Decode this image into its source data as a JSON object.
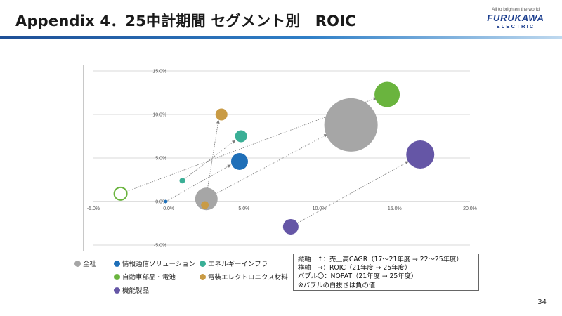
{
  "header": {
    "title": "Appendix 4．25中計期間 セグメント別　ROIC",
    "tagline": "All to brighten the world",
    "logo_main": "FURUKAWA",
    "logo_sub": "ELECTRIC"
  },
  "colors": {
    "accent_rule": "#1e4f96",
    "arrow": "#7a7a7a",
    "grid": "#d9d9d9"
  },
  "chart_data": {
    "type": "scatter",
    "subtype": "bubble",
    "xlim": [
      -5,
      20
    ],
    "ylim": [
      -5,
      15
    ],
    "x_ticks": [
      -5,
      0,
      5,
      10,
      15,
      20
    ],
    "y_ticks": [
      -5,
      0,
      5,
      10,
      15
    ],
    "x_tick_labels": [
      "-5.0%",
      "0.0%",
      "5.0%",
      "10.0%",
      "15.0%",
      "20.0%"
    ],
    "y_tick_labels": [
      "-5.0%",
      "0.0%",
      "5.0%",
      "10.0%",
      "15.0%"
    ],
    "grid": "horizontal",
    "series": [
      {
        "name": "全社",
        "color": "#a6a6a6",
        "points": [
          {
            "x": 2.5,
            "y": 0.3,
            "size": 16,
            "hollow": false
          },
          {
            "x": 12.1,
            "y": 8.8,
            "size": 38,
            "hollow": false
          }
        ]
      },
      {
        "name": "情報通信ソリューション",
        "color": "#1f6fb8",
        "points": [
          {
            "x": -0.2,
            "y": 0.0,
            "size": 2.5,
            "hollow": false
          },
          {
            "x": 4.7,
            "y": 4.6,
            "size": 12,
            "hollow": false
          }
        ]
      },
      {
        "name": "エネルギーインフラ",
        "color": "#3aaf96",
        "points": [
          {
            "x": 0.9,
            "y": 2.4,
            "size": 4,
            "hollow": false
          },
          {
            "x": 4.8,
            "y": 7.5,
            "size": 8.5,
            "hollow": false
          }
        ]
      },
      {
        "name": "自動車部品・電池",
        "color": "#6ab43e",
        "points": [
          {
            "x": -3.2,
            "y": 0.9,
            "size": 9,
            "hollow": true
          },
          {
            "x": 14.5,
            "y": 12.3,
            "size": 18,
            "hollow": false
          }
        ]
      },
      {
        "name": "電装エレクトロニクス材料",
        "color": "#c99b45",
        "points": [
          {
            "x": 2.4,
            "y": -0.4,
            "size": 5.5,
            "hollow": false
          },
          {
            "x": 3.5,
            "y": 10.0,
            "size": 8.5,
            "hollow": false
          }
        ]
      },
      {
        "name": "機能製品",
        "color": "#6556a6",
        "points": [
          {
            "x": 8.1,
            "y": -2.9,
            "size": 11,
            "hollow": false
          },
          {
            "x": 16.7,
            "y": 5.4,
            "size": 20,
            "hollow": false
          }
        ]
      }
    ],
    "arrows": [
      {
        "from": [
          -3.2,
          0.9
        ],
        "to": [
          13.8,
          11.9
        ]
      },
      {
        "from": [
          2.5,
          0.3
        ],
        "to": [
          10.5,
          7.7
        ]
      },
      {
        "from": [
          -0.2,
          0.0
        ],
        "to": [
          4.1,
          4.2
        ]
      },
      {
        "from": [
          0.9,
          2.4
        ],
        "to": [
          4.4,
          7.0
        ]
      },
      {
        "from": [
          2.4,
          -0.4
        ],
        "to": [
          3.3,
          9.3
        ]
      },
      {
        "from": [
          8.1,
          -2.9
        ],
        "to": [
          15.9,
          4.6
        ]
      }
    ]
  },
  "legend": [
    {
      "label": "全社",
      "color": "#a6a6a6"
    },
    {
      "label": "情報通信ソリューション",
      "color": "#1f6fb8"
    },
    {
      "label": "エネルギーインフラ",
      "color": "#3aaf96"
    },
    {
      "label": "自動車部品・電池",
      "color": "#6ab43e"
    },
    {
      "label": "電装エレクトロニクス材料",
      "color": "#c99b45"
    },
    {
      "label": "機能製品",
      "color": "#6556a6"
    }
  ],
  "note": {
    "line1": "縦軸　↑：売上高CAGR（17～21年度 → 22～25年度）",
    "line2": "横軸　→：ROIC（21年度 → 25年度）",
    "line3": "バブル〇：NOPAT（21年度 → 25年度）",
    "line4": "※バブルの白抜きは負の値"
  },
  "page_number": "34"
}
